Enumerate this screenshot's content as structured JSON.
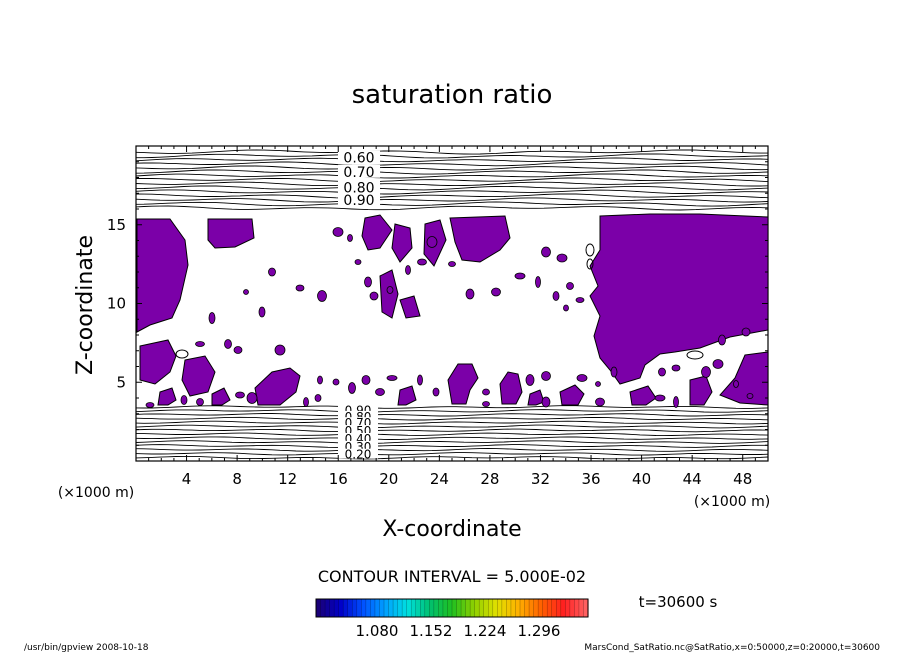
{
  "chart_data": {
    "type": "contour",
    "title": "saturation ratio",
    "xlabel": "X-coordinate",
    "ylabel": "Z-coordinate",
    "x_unit": "(×1000 m)",
    "y_unit": "(×1000 m)",
    "xlim": [
      0,
      50
    ],
    "ylim": [
      0,
      20
    ],
    "x_ticks": [
      4,
      8,
      12,
      16,
      20,
      24,
      28,
      32,
      36,
      40,
      44,
      48
    ],
    "y_ticks": [
      5,
      10,
      15
    ],
    "upper_contour_labels": [
      {
        "label": "0.60",
        "z": 19.2
      },
      {
        "label": "0.70",
        "z": 18.3
      },
      {
        "label": "0.80",
        "z": 17.3
      },
      {
        "label": "0.90",
        "z": 16.5
      }
    ],
    "lower_contour_labels": [
      {
        "label": "0.90",
        "z": 3.2
      },
      {
        "label": "0.80",
        "z": 2.8
      },
      {
        "label": "0.70",
        "z": 2.4
      },
      {
        "label": "0.50",
        "z": 1.9
      },
      {
        "label": "0.40",
        "z": 1.4
      },
      {
        "label": "0.30",
        "z": 0.9
      },
      {
        "label": "0.20",
        "z": 0.4
      }
    ],
    "supersaturated_fill_color": "#7b00a8",
    "contour_interval_text": "CONTOUR INTERVAL = 5.000E-02",
    "colorbar": {
      "tick_labels": [
        "1.080",
        "1.152",
        "1.224",
        "1.296"
      ],
      "colors": [
        "#1a0078",
        "#0000c8",
        "#0050ff",
        "#00a0ff",
        "#00e0e0",
        "#00c070",
        "#20c020",
        "#90d000",
        "#e0e000",
        "#ffb000",
        "#ff6000",
        "#ff2020",
        "#ff6060"
      ]
    },
    "time_label": "t=30600 s"
  },
  "footer": {
    "left": "/usr/bin/gpview  2008-10-18",
    "right": "MarsCond_SatRatio.nc@SatRatio,x=0:50000,z=0:20000,t=30600"
  }
}
